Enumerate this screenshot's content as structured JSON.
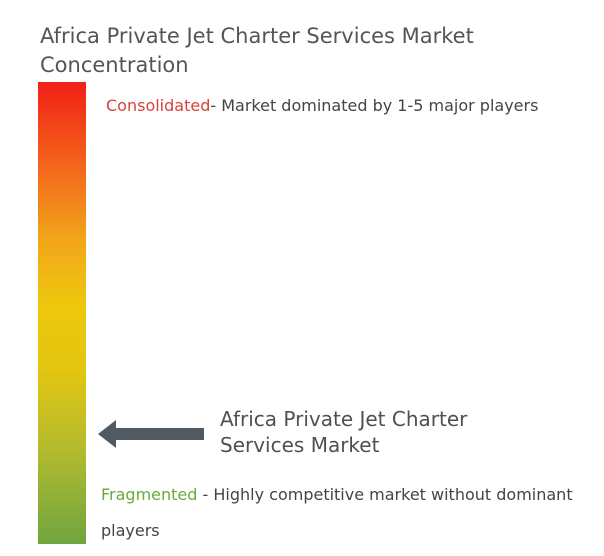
{
  "title": "Africa Private Jet Charter Services Market Concentration",
  "scale": {
    "top_color": "#f21f16",
    "middle_color": "#eec70e",
    "bottom_color": "#6fa640"
  },
  "consolidated": {
    "label": "Consolidated",
    "description": "- Market dominated by 1-5 major players",
    "label_color": "#d9423a"
  },
  "fragmented": {
    "label": "Fragmented",
    "description": " - Highly competitive market without dominant players",
    "label_color": "#6aab3c"
  },
  "marker": {
    "icon": "arrow-left-icon",
    "label": "Africa Private Jet Charter Services Market",
    "color": "#515a61"
  }
}
